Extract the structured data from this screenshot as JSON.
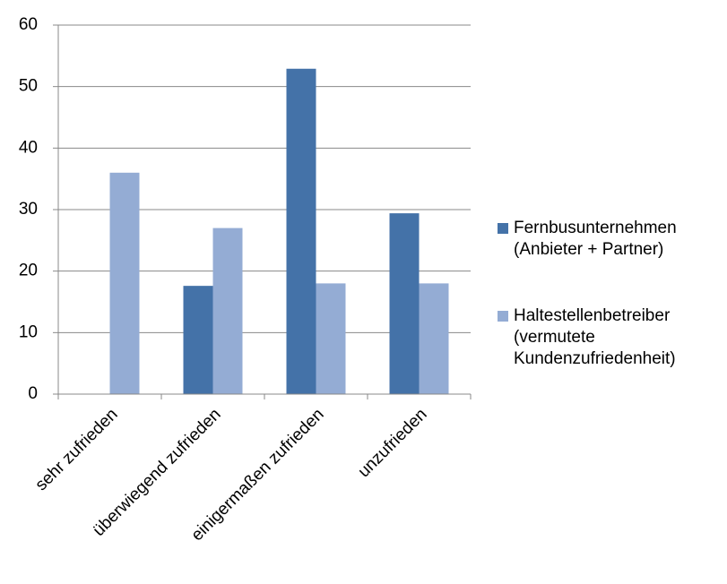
{
  "chart_data": {
    "type": "bar",
    "categories": [
      "sehr zufrieden",
      "überwiegend zufrieden",
      "einigermaßen zufrieden",
      "unzufrieden"
    ],
    "series": [
      {
        "name": "Fernbusunternehmen (Anbieter + Partner)",
        "color": "#4472a8",
        "values": [
          0,
          17.6,
          52.9,
          29.4
        ]
      },
      {
        "name": "Haltestellenbetreiber (vermutete Kundenzufriedenheit)",
        "color": "#94acd4",
        "values": [
          36,
          27,
          18,
          18
        ]
      }
    ],
    "ylim": [
      0,
      60
    ],
    "yticks": [
      0,
      10,
      20,
      30,
      40,
      50,
      60
    ],
    "grid": true,
    "legend": "right"
  }
}
